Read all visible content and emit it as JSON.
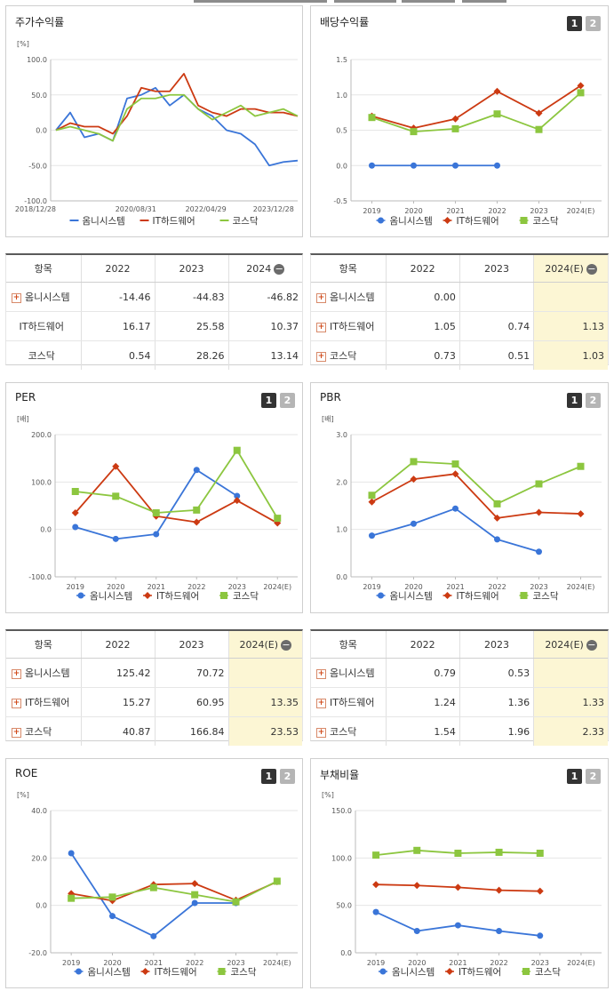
{
  "colors": {
    "omni": "#3a75d8",
    "it": "#cc3a12",
    "kosdaq": "#8cc63f",
    "grid": "#e6e6e6"
  },
  "legend": [
    "옴니시스템",
    "IT하드웨어",
    "코스닥"
  ],
  "pager": [
    "1",
    "2"
  ],
  "charts": {
    "stock": {
      "title": "주가수익률",
      "unit": "[%]",
      "yticks": [
        "100.0",
        "50.0",
        "0.0",
        "-50.0",
        "-100.0"
      ],
      "xticks": [
        "2018/12/28",
        "2020/08/31",
        "2022/04/29",
        "2023/12/28"
      ]
    },
    "dividend": {
      "title": "배당수익률",
      "yticks": [
        "1.5",
        "1.0",
        "0.5",
        "0.0",
        "-0.5"
      ],
      "xticks": [
        "2019",
        "2020",
        "2021",
        "2022",
        "2023",
        "2024(E)"
      ]
    },
    "per": {
      "title": "PER",
      "unit": "[배]",
      "yticks": [
        "200.0",
        "100.0",
        "0.0",
        "-100.0"
      ],
      "xticks": [
        "2019",
        "2020",
        "2021",
        "2022",
        "2023",
        "2024(E)"
      ]
    },
    "pbr": {
      "title": "PBR",
      "unit": "[배]",
      "yticks": [
        "3.0",
        "2.0",
        "1.0",
        "0.0"
      ],
      "xticks": [
        "2019",
        "2020",
        "2021",
        "2022",
        "2023",
        "2024(E)"
      ]
    },
    "roe": {
      "title": "ROE",
      "unit": "[%]",
      "yticks": [
        "40.0",
        "20.0",
        "0.0",
        "-20.0"
      ],
      "xticks": [
        "2019",
        "2020",
        "2021",
        "2022",
        "2023",
        "2024(E)"
      ]
    },
    "debt": {
      "title": "부채비율",
      "unit": "[%]",
      "yticks": [
        "150.0",
        "100.0",
        "50.0",
        "0.0"
      ],
      "xticks": [
        "2019",
        "2020",
        "2021",
        "2022",
        "2023",
        "2024(E)"
      ]
    }
  },
  "tables": {
    "stock": {
      "headers": [
        "항목",
        "2022",
        "2023",
        "2024"
      ],
      "rows": [
        {
          "name": "옴니시스템",
          "v": [
            "-14.46",
            "-44.83",
            "-46.82"
          ]
        },
        {
          "name": "IT하드웨어",
          "v": [
            "16.17",
            "25.58",
            "10.37"
          ]
        },
        {
          "name": "코스닥",
          "v": [
            "0.54",
            "28.26",
            "13.14"
          ]
        }
      ]
    },
    "dividend": {
      "headers": [
        "항목",
        "2022",
        "2023",
        "2024(E)"
      ],
      "rows": [
        {
          "name": "옴니시스템",
          "v": [
            "0.00",
            "",
            ""
          ]
        },
        {
          "name": "IT하드웨어",
          "v": [
            "1.05",
            "0.74",
            "1.13"
          ]
        },
        {
          "name": "코스닥",
          "v": [
            "0.73",
            "0.51",
            "1.03"
          ]
        }
      ]
    },
    "per": {
      "headers": [
        "항목",
        "2022",
        "2023",
        "2024(E)"
      ],
      "rows": [
        {
          "name": "옴니시스템",
          "v": [
            "125.42",
            "70.72",
            ""
          ]
        },
        {
          "name": "IT하드웨어",
          "v": [
            "15.27",
            "60.95",
            "13.35"
          ]
        },
        {
          "name": "코스닥",
          "v": [
            "40.87",
            "166.84",
            "23.53"
          ]
        }
      ]
    },
    "pbr": {
      "headers": [
        "항목",
        "2022",
        "2023",
        "2024(E)"
      ],
      "rows": [
        {
          "name": "옴니시스템",
          "v": [
            "0.79",
            "0.53",
            ""
          ]
        },
        {
          "name": "IT하드웨어",
          "v": [
            "1.24",
            "1.36",
            "1.33"
          ]
        },
        {
          "name": "코스닥",
          "v": [
            "1.54",
            "1.96",
            "2.33"
          ]
        }
      ]
    }
  },
  "chart_data": [
    {
      "type": "line",
      "id": "stock",
      "title": "주가수익률",
      "ylabel": "[%]",
      "ylim": [
        -100,
        100
      ],
      "x": [
        "2018/12/28",
        "2019/04",
        "2019/08",
        "2019/12",
        "2020/04",
        "2020/08/31",
        "2020/12",
        "2021/04",
        "2021/08",
        "2021/12",
        "2022/04/29",
        "2022/08",
        "2022/12",
        "2023/04",
        "2023/08",
        "2023/12/28",
        "2024/04",
        "2024/08"
      ],
      "series": [
        {
          "name": "옴니시스템",
          "values": [
            0,
            25,
            -10,
            -5,
            -15,
            45,
            50,
            60,
            35,
            50,
            30,
            20,
            0,
            -5,
            -20,
            -50,
            -45,
            -43
          ]
        },
        {
          "name": "IT하드웨어",
          "values": [
            0,
            10,
            5,
            5,
            -5,
            20,
            60,
            55,
            55,
            80,
            35,
            25,
            20,
            30,
            30,
            25,
            25,
            20
          ]
        },
        {
          "name": "코스닥",
          "values": [
            0,
            5,
            0,
            -5,
            -15,
            30,
            45,
            45,
            50,
            50,
            30,
            15,
            25,
            35,
            20,
            25,
            30,
            20
          ]
        }
      ]
    },
    {
      "type": "line",
      "id": "dividend",
      "title": "배당수익률",
      "ylim": [
        -0.5,
        1.5
      ],
      "x": [
        "2019",
        "2020",
        "2021",
        "2022",
        "2023",
        "2024(E)"
      ],
      "series": [
        {
          "name": "옴니시스템",
          "values": [
            0.0,
            0.0,
            0.0,
            0.0,
            null,
            null
          ]
        },
        {
          "name": "IT하드웨어",
          "values": [
            0.7,
            0.53,
            0.66,
            1.05,
            0.74,
            1.13
          ]
        },
        {
          "name": "코스닥",
          "values": [
            0.68,
            0.48,
            0.52,
            0.73,
            0.51,
            1.03
          ]
        }
      ]
    },
    {
      "type": "line",
      "id": "per",
      "title": "PER",
      "ylabel": "[배]",
      "ylim": [
        -100,
        200
      ],
      "x": [
        "2019",
        "2020",
        "2021",
        "2022",
        "2023",
        "2024(E)"
      ],
      "series": [
        {
          "name": "옴니시스템",
          "values": [
            5,
            -20,
            -10,
            125.42,
            70.72,
            null
          ]
        },
        {
          "name": "IT하드웨어",
          "values": [
            35,
            133,
            28,
            15.27,
            60.95,
            13.35
          ]
        },
        {
          "name": "코스닥",
          "values": [
            80,
            70,
            35,
            40.87,
            166.84,
            23.53
          ]
        }
      ]
    },
    {
      "type": "line",
      "id": "pbr",
      "title": "PBR",
      "ylabel": "[배]",
      "ylim": [
        0,
        3
      ],
      "x": [
        "2019",
        "2020",
        "2021",
        "2022",
        "2023",
        "2024(E)"
      ],
      "series": [
        {
          "name": "옴니시스템",
          "values": [
            0.87,
            1.12,
            1.44,
            0.79,
            0.53,
            null
          ]
        },
        {
          "name": "IT하드웨어",
          "values": [
            1.58,
            2.06,
            2.17,
            1.24,
            1.36,
            1.33
          ]
        },
        {
          "name": "코스닥",
          "values": [
            1.72,
            2.43,
            2.38,
            1.54,
            1.96,
            2.33
          ]
        }
      ]
    },
    {
      "type": "line",
      "id": "roe",
      "title": "ROE",
      "ylabel": "[%]",
      "ylim": [
        -20,
        40
      ],
      "x": [
        "2019",
        "2020",
        "2021",
        "2022",
        "2023",
        "2024(E)"
      ],
      "series": [
        {
          "name": "옴니시스템",
          "values": [
            22,
            -4.5,
            -13,
            1,
            1,
            null
          ]
        },
        {
          "name": "IT하드웨어",
          "values": [
            5,
            2,
            8.8,
            9.2,
            2.2,
            10
          ]
        },
        {
          "name": "코스닥",
          "values": [
            3,
            3.5,
            7.5,
            4.5,
            1.5,
            10.2
          ]
        }
      ]
    },
    {
      "type": "line",
      "id": "debt",
      "title": "부채비율",
      "ylabel": "[%]",
      "ylim": [
        0,
        150
      ],
      "x": [
        "2019",
        "2020",
        "2021",
        "2022",
        "2023",
        "2024(E)"
      ],
      "series": [
        {
          "name": "옴니시스템",
          "values": [
            43,
            23,
            29,
            23,
            18,
            null
          ]
        },
        {
          "name": "IT하드웨어",
          "values": [
            72,
            71,
            69,
            66,
            65,
            null
          ]
        },
        {
          "name": "코스닥",
          "values": [
            103,
            108,
            105,
            106,
            105,
            null
          ]
        }
      ]
    }
  ]
}
